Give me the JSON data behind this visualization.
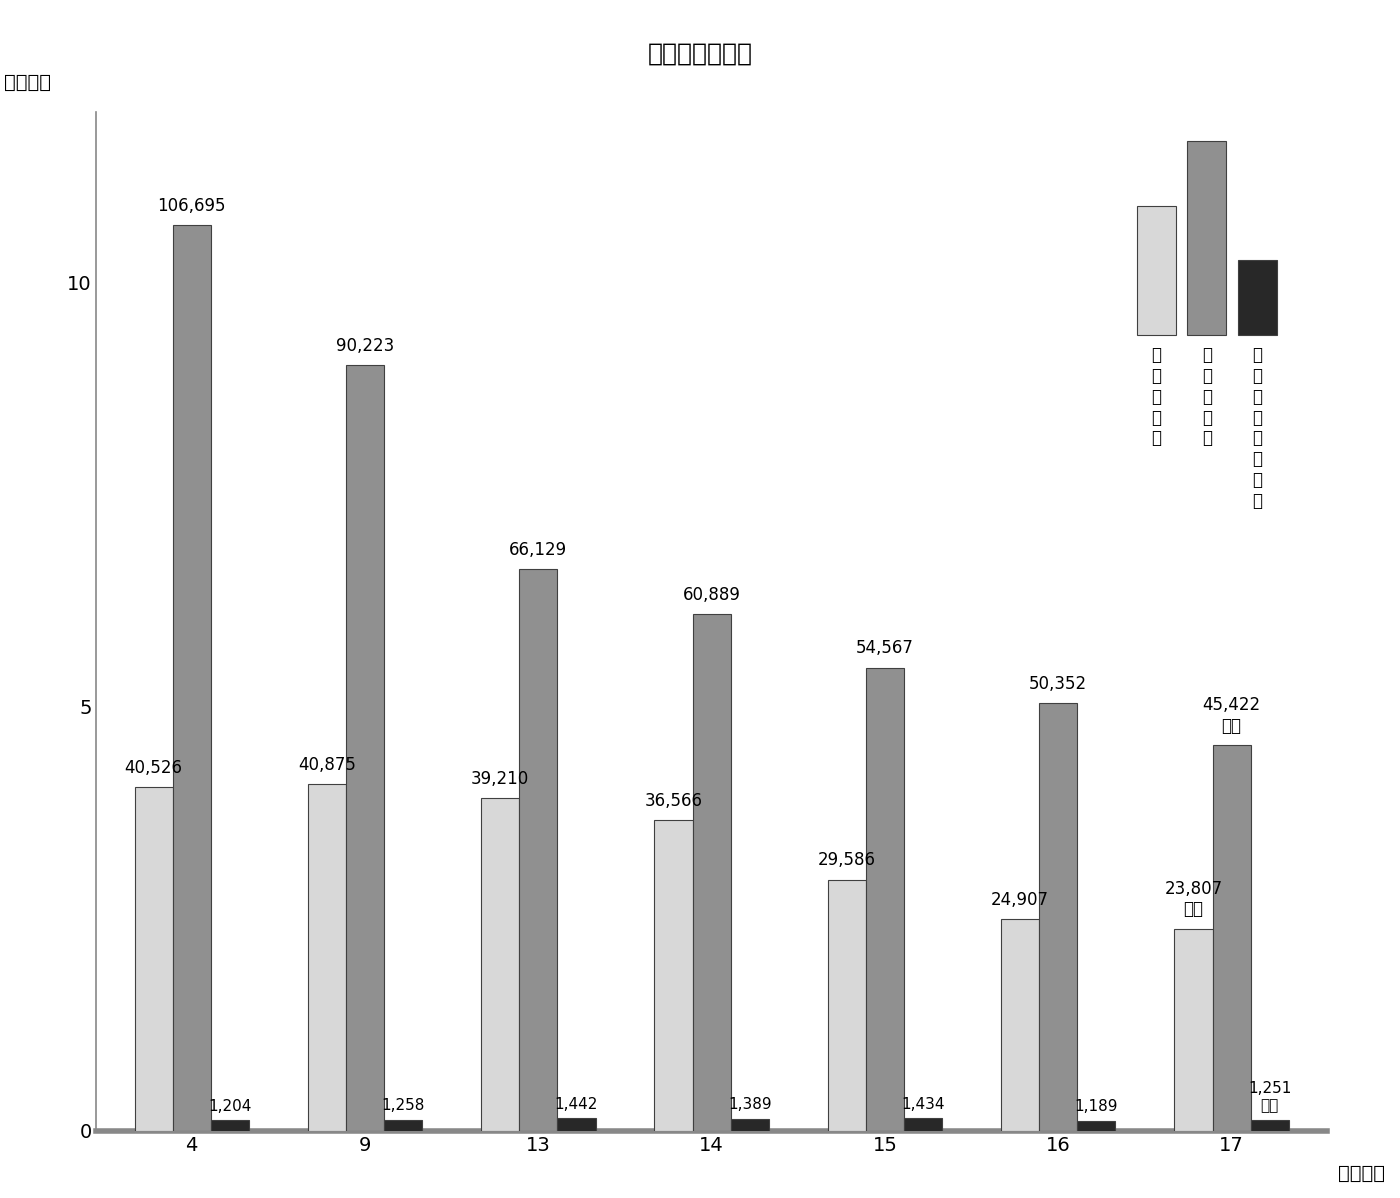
{
  "title": "その３　市町村",
  "years": [
    4,
    9,
    13,
    14,
    15,
    16,
    17
  ],
  "hojojigyohi": [
    40526,
    40875,
    39210,
    36566,
    29586,
    24907,
    23807
  ],
  "tandokujigyohi": [
    106695,
    90223,
    66129,
    60889,
    54567,
    50352,
    45422
  ],
  "chokukatsu": [
    1204,
    1258,
    1442,
    1389,
    1434,
    1189,
    1251
  ],
  "bar_colors": [
    "#d8d8d8",
    "#909090",
    "#282828"
  ],
  "bar_width": 0.22,
  "ylim": [
    0,
    12
  ],
  "yticks": [
    0,
    5,
    10
  ],
  "background_color": "#ffffff",
  "title_fontsize": 18,
  "label_fontsize": 14,
  "tick_fontsize": 14,
  "annot_fontsize": 12,
  "small_annot_fontsize": 11
}
